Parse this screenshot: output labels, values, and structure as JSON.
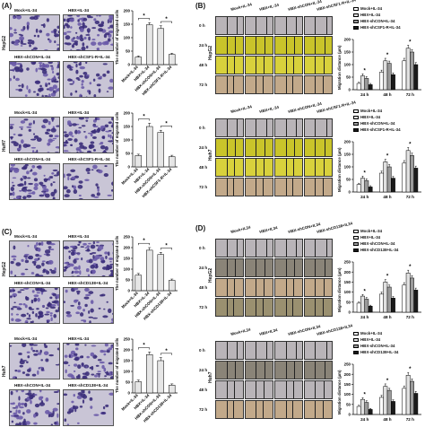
{
  "panels": {
    "A": {
      "label": "(A)",
      "rows": [
        {
          "row_label": "HepG2",
          "captions": [
            "Mock+IL-34",
            "HBX+IL-34",
            "HBX-shCON+IL-34",
            "HBX-shCSF1-R+IL-34"
          ],
          "ylabel": "The number of migrated cells"
        },
        {
          "row_label": "HuH7",
          "captions": [
            "Mock+IL-34",
            "HBX+IL-34",
            "HBX-shCON+IL-34",
            "HBX-shCSF1-R+IL-34"
          ],
          "ylabel": "The number of migrated cells"
        }
      ]
    },
    "B": {
      "label": "(B)",
      "rows": [
        {
          "row_label": "HepG2",
          "headers": [
            "Mock+IL-34",
            "HBX+IL-34",
            "HBX-shCON+IL-34",
            "HBX-shCSF1-R+IL-34"
          ],
          "times": [
            "0 h",
            "24 h",
            "48 h",
            "72 h"
          ],
          "ylabel": "Migration distance (μm)",
          "legend": [
            "Mock+IL-34",
            "HBX+IL-34",
            "HBX-shCON+IL-34",
            "HBX-shCSF1-R+IL-34"
          ]
        },
        {
          "row_label": "Huh7",
          "headers": [
            "Mock+IL-34",
            "HBX+IL-34",
            "HBX-shCON+IL-34",
            "HBX-shCSF1-R+IL-34"
          ],
          "times": [
            "0 h",
            "24 h",
            "48 h",
            "72 h"
          ],
          "ylabel": "Migration distance (μm)",
          "legend": [
            "Mock+IL-34",
            "HBX+IL-34",
            "HBX-shCON+IL-34",
            "HBX-shCSF1-R+IL-34"
          ]
        }
      ]
    },
    "C": {
      "label": "(C)",
      "rows": [
        {
          "row_label": "HepG2",
          "captions": [
            "Mock+IL-34",
            "HBX+IL-34",
            "HBX-shCON+IL-34",
            "HBX-shCD138+IL-34"
          ],
          "ylabel": "The number of migrated cells"
        },
        {
          "row_label": "Huh7",
          "captions": [
            "Mock+IL-34",
            "HBX+IL-34",
            "HBX-shCON+IL-34",
            "HBX-shCD138+IL-34"
          ],
          "ylabel": "The number of migrated cells"
        }
      ]
    },
    "D": {
      "label": "(D)",
      "rows": [
        {
          "row_label": "HepG2",
          "headers": [
            "Mock+IL34",
            "HBX+IL34",
            "HBX-shCON+IL34",
            "HBX-shCD138+IL34"
          ],
          "times": [
            "0 h",
            "24 h",
            "48 h",
            "72 h"
          ],
          "ylabel": "Migration distance (μm)",
          "legend": [
            "Mock+IL-34",
            "HBX+IL-34",
            "HBX-shCON+IL-34",
            "HBX-shCD138+IL-34"
          ]
        },
        {
          "row_label": "Huh7",
          "headers": [
            "Mock+IL34",
            "HBX+IL34",
            "HBX-shCON+IL34",
            "HBX-shCD138+IL34"
          ],
          "times": [
            "0 h",
            "24 h",
            "48 h",
            "72 h"
          ],
          "ylabel": "Migration distance (μm)",
          "legend": [
            "Mock+IL-34",
            "HBX+IL-34",
            "HBX-shCON+IL-34",
            "HBX-shCD138+IL-34"
          ]
        }
      ]
    }
  },
  "well_colors": [
    "#b9b4b8",
    "#c9c42a",
    "#c2a98a",
    "#9a9070",
    "#8a8478",
    "#d8d13c"
  ],
  "chart_data": [
    {
      "panel": "A-HepG2",
      "type": "bar",
      "categories": [
        "Mock+IL-34",
        "HBX+IL-34",
        "HBX-shCON+IL-34",
        "HBX-shCSF1-R+IL-34"
      ],
      "values": [
        28,
        148,
        134,
        38
      ],
      "errors": [
        4,
        8,
        10,
        4
      ],
      "ylim": [
        0,
        200
      ],
      "yticks": [
        "0",
        "50",
        "100",
        "150",
        "200"
      ],
      "ylabel": "The number of migrated cells",
      "significance": [
        "*",
        "*"
      ]
    },
    {
      "panel": "A-HuH7",
      "type": "bar",
      "categories": [
        "Mock+IL-34",
        "HBX+IL-34",
        "HBX-shCON+IL-34",
        "HBX-shCSF1-R+IL-34"
      ],
      "values": [
        42,
        150,
        128,
        38
      ],
      "errors": [
        5,
        12,
        8,
        5
      ],
      "ylim": [
        0,
        200
      ],
      "yticks": [
        "0",
        "50",
        "100",
        "150",
        "200"
      ],
      "ylabel": "The number of migrated cells",
      "significance": [
        "*",
        "*"
      ]
    },
    {
      "panel": "B-HepG2",
      "type": "bar",
      "categories": [
        "24 h",
        "48 h",
        "72 h"
      ],
      "series": [
        {
          "name": "Mock+IL-34",
          "values": [
            25,
            70,
            115
          ],
          "errors": [
            5,
            8,
            10
          ]
        },
        {
          "name": "HBX+IL-34",
          "values": [
            55,
            115,
            165
          ],
          "errors": [
            8,
            10,
            12
          ]
        },
        {
          "name": "HBX-shCON+IL-34",
          "values": [
            45,
            105,
            150
          ],
          "errors": [
            7,
            9,
            10
          ]
        },
        {
          "name": "HBX-shCSF1-R+IL-34",
          "values": [
            20,
            60,
            100
          ],
          "errors": [
            5,
            7,
            8
          ]
        }
      ],
      "ylim": [
        0,
        200
      ],
      "yticks": [
        "0",
        "50",
        "100",
        "150",
        "200"
      ],
      "ylabel": "Migration distance (μm)",
      "legend_position": "top-right"
    },
    {
      "panel": "B-Huh7",
      "type": "bar",
      "categories": [
        "24 h",
        "48 h",
        "72 h"
      ],
      "series": [
        {
          "name": "Mock+IL-34",
          "values": [
            30,
            75,
            115
          ],
          "errors": [
            5,
            8,
            10
          ]
        },
        {
          "name": "HBX+IL-34",
          "values": [
            55,
            120,
            165
          ],
          "errors": [
            8,
            10,
            12
          ]
        },
        {
          "name": "HBX-shCON+IL-34",
          "values": [
            45,
            100,
            145
          ],
          "errors": [
            7,
            9,
            10
          ]
        },
        {
          "name": "HBX-shCSF1-R+IL-34",
          "values": [
            20,
            55,
            95
          ],
          "errors": [
            5,
            7,
            8
          ]
        }
      ],
      "ylim": [
        0,
        200
      ],
      "yticks": [
        "0",
        "50",
        "100",
        "150",
        "200"
      ],
      "ylabel": "Migration distance (μm)",
      "legend_position": "top-right"
    },
    {
      "panel": "C-HepG2",
      "type": "bar",
      "categories": [
        "Mock+IL-34",
        "HBX+IL-34",
        "HBX-shCON+IL-34",
        "HBX-shCD138+IL-34"
      ],
      "values": [
        72,
        188,
        168,
        48
      ],
      "errors": [
        8,
        12,
        10,
        6
      ],
      "ylim": [
        0,
        250
      ],
      "yticks": [
        "0",
        "50",
        "100",
        "150",
        "200",
        "250"
      ],
      "ylabel": "The number of migrated cells",
      "significance": [
        "*",
        "*"
      ]
    },
    {
      "panel": "C-Huh7",
      "type": "bar",
      "categories": [
        "Mock+IL-34",
        "HBX+IL-34",
        "HBX-shCON+IL-34",
        "HBX-shCD138+IL-34"
      ],
      "values": [
        52,
        178,
        150,
        36
      ],
      "errors": [
        8,
        12,
        14,
        6
      ],
      "ylim": [
        0,
        250
      ],
      "yticks": [
        "0",
        "50",
        "100",
        "150",
        "200",
        "250"
      ],
      "ylabel": "The number of migrated cells",
      "significance": [
        "*",
        "*"
      ]
    },
    {
      "panel": "D-HepG2",
      "type": "bar",
      "categories": [
        "24 h",
        "48 h",
        "72 h"
      ],
      "series": [
        {
          "name": "Mock+IL-34",
          "values": [
            45,
            90,
            135
          ],
          "errors": [
            6,
            10,
            12
          ]
        },
        {
          "name": "HBX+IL-34",
          "values": [
            80,
            150,
            195
          ],
          "errors": [
            8,
            12,
            14
          ]
        },
        {
          "name": "HBX-shCON+IL-34",
          "values": [
            65,
            125,
            170
          ],
          "errors": [
            8,
            10,
            12
          ]
        },
        {
          "name": "HBX-shCD138+IL-34",
          "values": [
            30,
            70,
            110
          ],
          "errors": [
            5,
            8,
            10
          ]
        }
      ],
      "ylim": [
        0,
        250
      ],
      "yticks": [
        "0",
        "50",
        "100",
        "150",
        "200",
        "250"
      ],
      "ylabel": "Migration distance (μm)",
      "legend_position": "top-right"
    },
    {
      "panel": "D-Huh7",
      "type": "bar",
      "categories": [
        "24 h",
        "48 h",
        "72 h"
      ],
      "series": [
        {
          "name": "Mock+IL-34",
          "values": [
            40,
            85,
            130
          ],
          "errors": [
            6,
            10,
            12
          ]
        },
        {
          "name": "HBX+IL-34",
          "values": [
            75,
            140,
            195
          ],
          "errors": [
            8,
            12,
            14
          ]
        },
        {
          "name": "HBX-shCON+IL-34",
          "values": [
            60,
            120,
            165
          ],
          "errors": [
            8,
            10,
            12
          ]
        },
        {
          "name": "HBX-shCD138+IL-34",
          "values": [
            25,
            65,
            105
          ],
          "errors": [
            5,
            8,
            10
          ]
        }
      ],
      "ylim": [
        0,
        250
      ],
      "yticks": [
        "0",
        "50",
        "100",
        "150",
        "200",
        "250"
      ],
      "ylabel": "Migration distance (μm)",
      "legend_position": "top-right"
    }
  ]
}
